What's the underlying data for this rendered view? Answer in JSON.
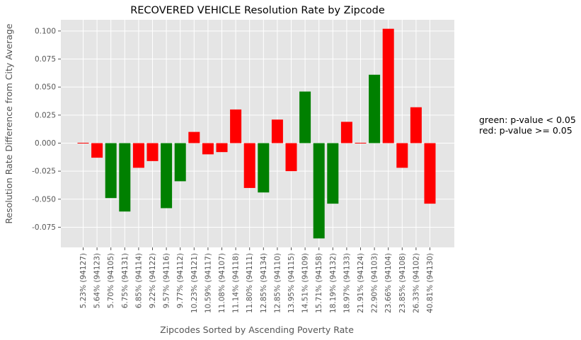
{
  "chart_data": {
    "type": "bar",
    "title": "RECOVERED VEHICLE Resolution Rate by Zipcode",
    "xlabel": "Zipcodes Sorted by Ascending Poverty Rate",
    "ylabel": "Resolution Rate Difference from City Average",
    "ylim": [
      -0.093,
      0.11
    ],
    "yticks": [
      "0.100",
      "0.075",
      "0.050",
      "0.025",
      "0.000",
      "-0.025",
      "-0.050",
      "-0.075"
    ],
    "grid": true,
    "legend": "right",
    "colors": {
      "green": "#008000",
      "red": "#ff0000",
      "background": "#e5e5e5",
      "grid": "#ffffff"
    },
    "categories": [
      "5.23% (94127)",
      "5.64% (94123)",
      "5.70% (94105)",
      "6.75% (94131)",
      "6.85% (94114)",
      "9.22% (94122)",
      "9.57% (94116)",
      "9.77% (94112)",
      "10.23% (94121)",
      "10.59% (94117)",
      "11.08% (94107)",
      "11.14% (94118)",
      "11.80% (94111)",
      "12.85% (94134)",
      "12.85% (94110)",
      "13.95% (94115)",
      "14.51% (94109)",
      "15.71% (94158)",
      "18.19% (94132)",
      "18.97% (94133)",
      "21.91% (94124)",
      "22.90% (94103)",
      "23.66% (94104)",
      "23.85% (94108)",
      "26.33% (94102)",
      "40.81% (94130)"
    ],
    "values": [
      0.0005,
      -0.013,
      -0.049,
      -0.061,
      -0.022,
      -0.016,
      -0.058,
      -0.034,
      0.01,
      -0.01,
      -0.008,
      0.03,
      -0.04,
      -0.044,
      0.021,
      -0.025,
      0.046,
      -0.085,
      -0.054,
      0.019,
      0.0005,
      0.061,
      0.102,
      -0.022,
      0.032,
      -0.054
    ],
    "bar_colors": [
      "red",
      "red",
      "green",
      "green",
      "red",
      "red",
      "green",
      "green",
      "red",
      "red",
      "red",
      "red",
      "red",
      "green",
      "red",
      "red",
      "green",
      "green",
      "green",
      "red",
      "red",
      "green",
      "red",
      "red",
      "red",
      "red"
    ],
    "annotation": {
      "line1": "green: p-value < 0.05",
      "line2": "red: p-value >= 0.05"
    }
  }
}
